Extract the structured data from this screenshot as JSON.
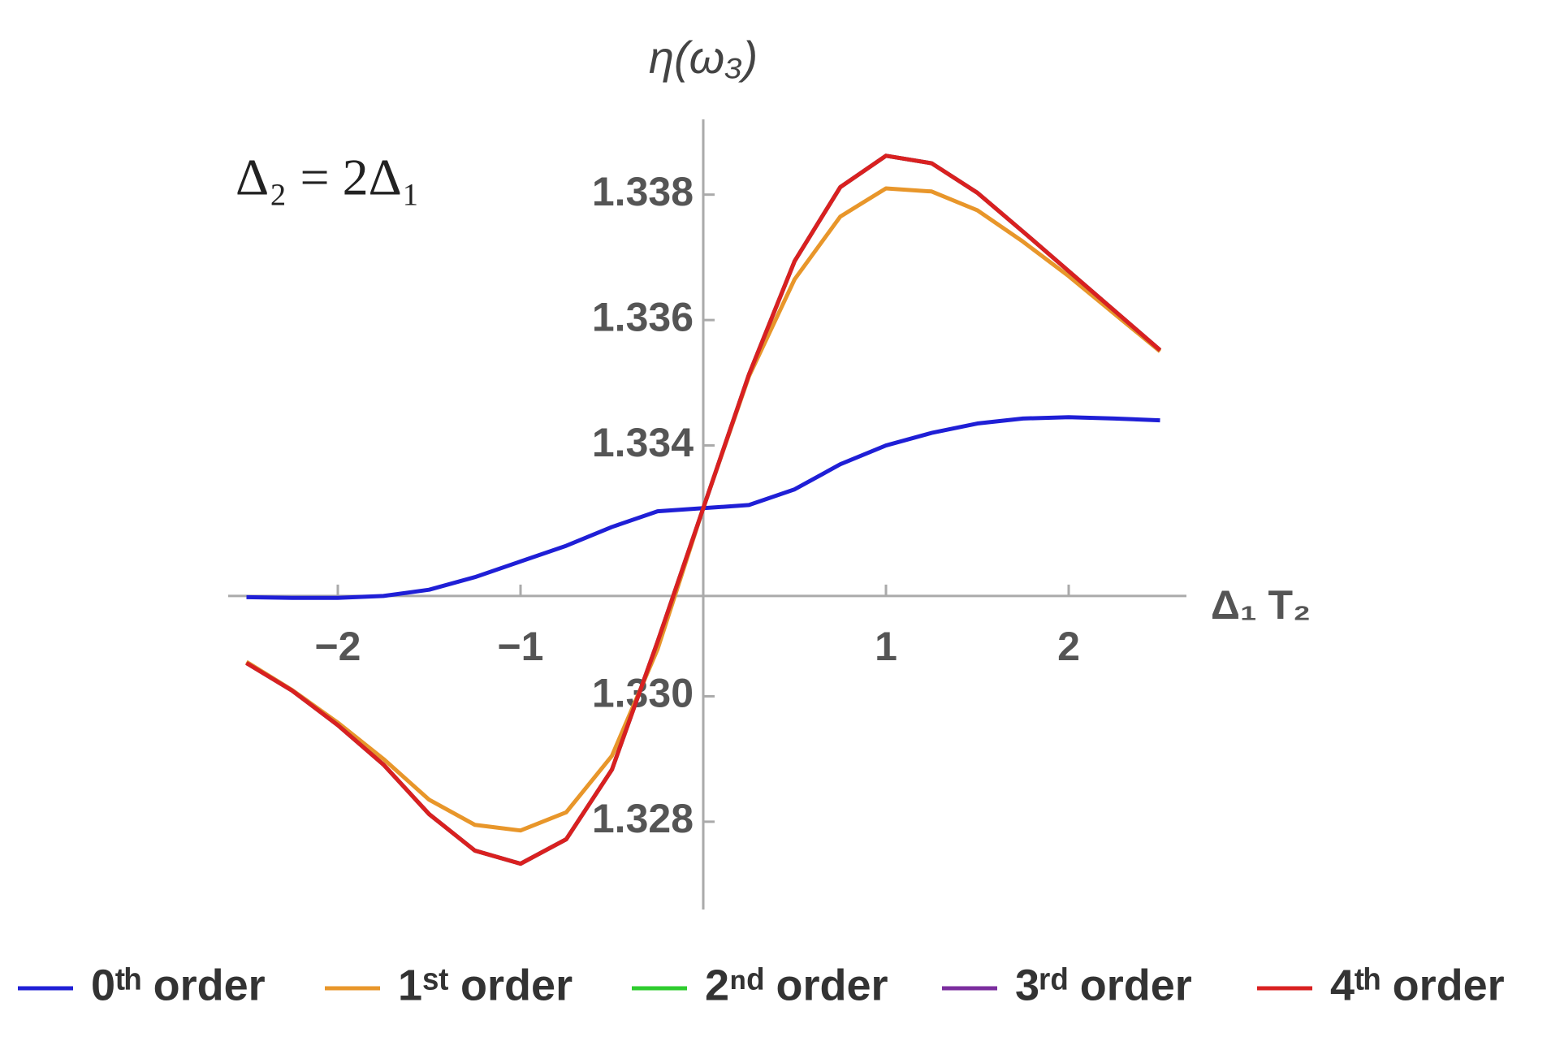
{
  "chart_data": {
    "type": "line",
    "annotation": "Δ₂ = 2Δ₁",
    "x_label": "Δ₁ T₂",
    "y_label": "η(ω₃)",
    "x": [
      -2.5,
      -2.25,
      -2.0,
      -1.75,
      -1.5,
      -1.25,
      -1.0,
      -0.75,
      -0.5,
      -0.25,
      0,
      0.25,
      0.5,
      0.75,
      1.0,
      1.25,
      1.5,
      1.75,
      2.0,
      2.25,
      2.5
    ],
    "series": [
      {
        "name": "0ᵗʰ order",
        "color": "#1f1fd6",
        "values": [
          1.33158,
          1.33157,
          1.33157,
          1.3316,
          1.3317,
          1.3319,
          1.33215,
          1.3324,
          1.3327,
          1.33295,
          1.333,
          1.33305,
          1.3333,
          1.3337,
          1.334,
          1.3342,
          1.33435,
          1.33443,
          1.33445,
          1.33443,
          1.3344
        ]
      },
      {
        "name": "1ˢᵗ order",
        "color": "#e8962a",
        "values": [
          1.33055,
          1.3301,
          1.32958,
          1.329,
          1.32835,
          1.32795,
          1.32786,
          1.32815,
          1.32905,
          1.33075,
          1.333,
          1.3351,
          1.33665,
          1.33765,
          1.3381,
          1.33805,
          1.33775,
          1.33725,
          1.3367,
          1.3361,
          1.3355
        ]
      },
      {
        "name": "2ⁿᵈ order",
        "color": "#2ecc2e",
        "values": [
          1.33053,
          1.33009,
          1.32954,
          1.32891,
          1.32812,
          1.32754,
          1.32733,
          1.32772,
          1.32883,
          1.33087,
          1.333,
          1.33513,
          1.33694,
          1.33812,
          1.33862,
          1.3385,
          1.33803,
          1.33741,
          1.33678,
          1.33615,
          1.33552
        ]
      },
      {
        "name": "3ʳᵈ order",
        "color": "#7b2d9e",
        "values": [
          1.33053,
          1.33009,
          1.32954,
          1.32891,
          1.32812,
          1.32754,
          1.32733,
          1.32772,
          1.32883,
          1.33087,
          1.333,
          1.33513,
          1.33694,
          1.33812,
          1.33862,
          1.3385,
          1.33803,
          1.33741,
          1.33678,
          1.33615,
          1.33552
        ]
      },
      {
        "name": "4ᵗʰ order",
        "color": "#d92020",
        "values": [
          1.33053,
          1.33009,
          1.32954,
          1.32891,
          1.32812,
          1.32754,
          1.32733,
          1.32772,
          1.32883,
          1.33087,
          1.333,
          1.33513,
          1.33694,
          1.33812,
          1.33862,
          1.3385,
          1.33803,
          1.33741,
          1.33678,
          1.33615,
          1.33552
        ]
      }
    ],
    "xlim": [
      -2.6,
      2.6
    ],
    "ylim": [
      1.3266,
      1.3392
    ],
    "x_axis_at": 1.3316,
    "xticks": [
      {
        "value": -2,
        "label": "−2"
      },
      {
        "value": -1,
        "label": "−1"
      },
      1,
      2
    ],
    "yticks": [
      1.328,
      {
        "value": 1.33,
        "label": "1.330"
      },
      1.334,
      1.336,
      1.338
    ],
    "legend": "bottom"
  }
}
